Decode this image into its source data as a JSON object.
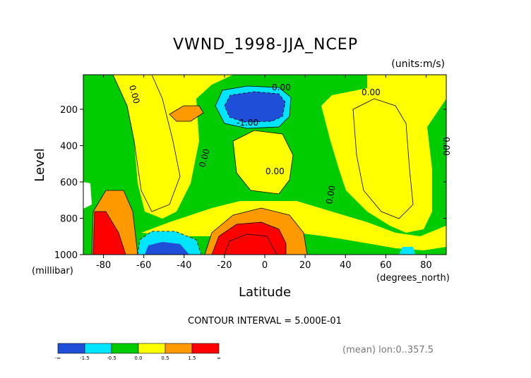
{
  "chart_data": {
    "type": "heatmap",
    "title": "VWND_1998-JJA_NCEP",
    "units_note": "(units:m/s)",
    "xlabel": "Latitude",
    "ylabel": "Level",
    "x_units": "(degrees_north)",
    "y_units": "(millibar)",
    "xlim": [
      -90,
      90
    ],
    "ylim": [
      1000,
      10
    ],
    "x_ticks": [
      -80,
      -60,
      -40,
      -20,
      0,
      20,
      40,
      60,
      80
    ],
    "x_tick_labels": [
      "-80",
      "-60",
      "-40",
      "-20",
      "0",
      "20",
      "40",
      "60",
      "80"
    ],
    "y_ticks": [
      200,
      400,
      600,
      800,
      1000
    ],
    "y_tick_labels": [
      "200",
      "400",
      "600",
      "800",
      "1000"
    ],
    "contour_interval_text": "CONTOUR INTERVAL = 5.000E-01",
    "mean_note": "(mean) lon:0..357.5",
    "contour_labels": [
      "0.00",
      "0.00",
      "0.00",
      "0.00",
      "0.00",
      "0.00",
      "0.00",
      "-1.00"
    ],
    "colorbar": {
      "bins": [
        {
          "range": "< -1.5",
          "color": "#1f4fd8"
        },
        {
          "range": "-1.5 to -0.5",
          "color": "#00e5ff"
        },
        {
          "range": "-0.5 to 0.0",
          "color": "#00cc00"
        },
        {
          "range": "0.0 to 0.5",
          "color": "#ffff00"
        },
        {
          "range": "0.5 to 1.5",
          "color": "#ff9900"
        },
        {
          "range": "> 1.5",
          "color": "#ff0000"
        }
      ],
      "tick_labels": [
        "-∞",
        "-1.5",
        "-0.5",
        "0.0",
        "0.5",
        "1.5",
        "∞"
      ]
    },
    "features": [
      {
        "name": "northern upper-level minimum",
        "lat_range": [
          -5,
          10
        ],
        "level_range": [
          150,
          270
        ],
        "sign": "negative",
        "min_value": -2.0
      },
      {
        "name": "southern surface minimum",
        "lat_range": [
          -60,
          -45
        ],
        "level_range": [
          900,
          1000
        ],
        "sign": "negative",
        "min_value": -2.0
      },
      {
        "name": "equatorial low-level maximum",
        "lat_range": [
          -20,
          0
        ],
        "level_range": [
          850,
          1000
        ],
        "sign": "positive",
        "max_value": 3.0
      },
      {
        "name": "polar low-level maximum",
        "lat_range": [
          -85,
          -75
        ],
        "level_range": [
          800,
          1000
        ],
        "sign": "positive",
        "max_value": 3.0
      }
    ]
  }
}
